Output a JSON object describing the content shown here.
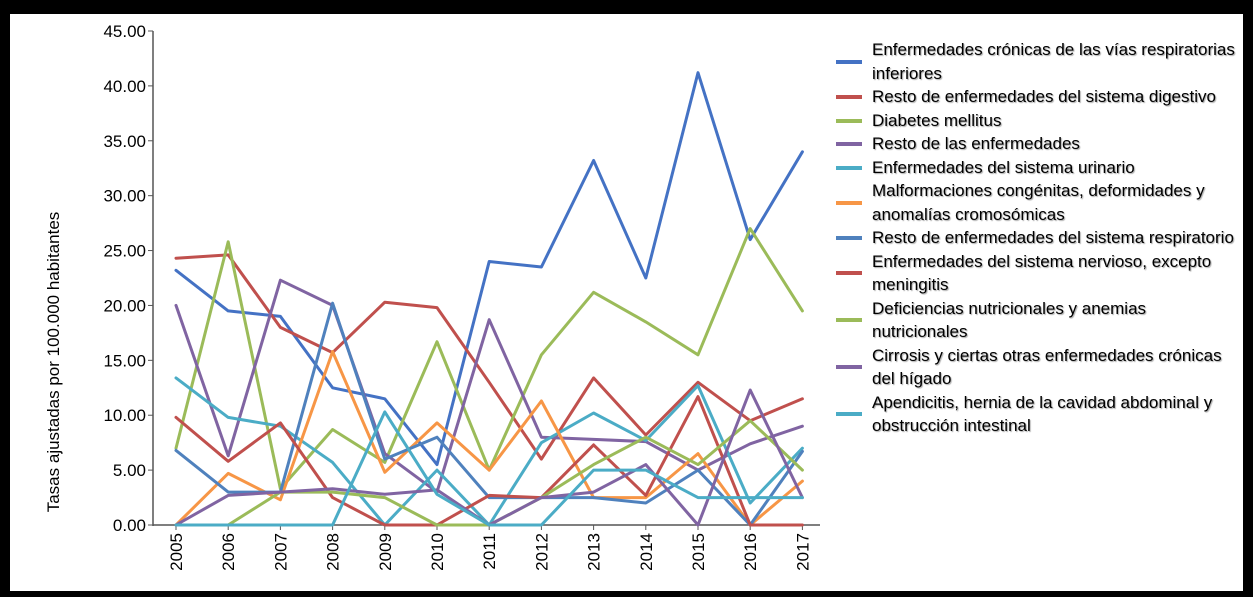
{
  "chart_data": {
    "type": "line",
    "title": "",
    "xlabel": "",
    "ylabel": "Tasas ajustadas por 100.000 habitantes",
    "ylim": [
      0,
      45
    ],
    "yticks": [
      "0.00",
      "5.00",
      "10.00",
      "15.00",
      "20.00",
      "25.00",
      "30.00",
      "35.00",
      "40.00",
      "45.00"
    ],
    "x": [
      "2005",
      "2006",
      "2007",
      "2008",
      "2009",
      "2010",
      "2011",
      "2012",
      "2013",
      "2014",
      "2015",
      "2016",
      "2017"
    ],
    "legend_position": "right",
    "series": [
      {
        "name": "Enfermedades crónicas de las vías respiratorias inferiores",
        "color": "#4472C4",
        "values": [
          23.2,
          19.5,
          19.0,
          12.5,
          11.5,
          5.5,
          24.0,
          23.5,
          33.2,
          22.5,
          41.2,
          26.0,
          34.0
        ]
      },
      {
        "name": "Resto de enfermedades del sistema digestivo",
        "color": "#C0504D",
        "values": [
          24.3,
          24.6,
          18.0,
          15.7,
          20.3,
          19.8,
          13.0,
          6.0,
          13.4,
          8.2,
          13.0,
          9.5,
          11.5
        ]
      },
      {
        "name": "Diabetes mellitus",
        "color": "#9BBB59",
        "values": [
          7.0,
          25.8,
          3.3,
          8.7,
          5.7,
          16.7,
          5.0,
          15.5,
          21.2,
          18.5,
          15.5,
          27.0,
          19.5
        ]
      },
      {
        "name": "Resto de las enfermedades",
        "color": "#8064A2",
        "values": [
          20.0,
          6.3,
          22.3,
          20.0,
          6.5,
          3.0,
          18.7,
          8.0,
          7.8,
          7.6,
          5.0,
          7.4,
          9.0
        ]
      },
      {
        "name": "Enfermedades del sistema urinario",
        "color": "#4BACC6",
        "values": [
          13.4,
          9.8,
          9.0,
          5.7,
          0.0,
          5.0,
          0.0,
          7.5,
          10.2,
          7.7,
          12.7,
          2.0,
          7.0
        ]
      },
      {
        "name": "Malformaciones congénitas, deformidades y anomalías cromosómicas",
        "color": "#F79646",
        "values": [
          0.0,
          4.7,
          2.3,
          15.8,
          4.8,
          9.3,
          5.0,
          11.3,
          2.5,
          2.5,
          6.5,
          0.0,
          4.0
        ]
      },
      {
        "name": "Resto de enfermedades del sistema respiratorio",
        "color": "#4F81BD",
        "values": [
          6.8,
          3.0,
          3.0,
          20.2,
          6.0,
          8.0,
          2.5,
          2.5,
          2.5,
          2.0,
          5.0,
          0.0,
          6.7
        ]
      },
      {
        "name": "Enfermedades del sistema nervioso, excepto meningitis",
        "color": "#C0504D",
        "values": [
          9.8,
          5.8,
          9.3,
          2.5,
          0.0,
          0.0,
          2.7,
          2.5,
          7.3,
          2.7,
          11.7,
          0.0,
          0.0
        ]
      },
      {
        "name": "Deficiencias nutricionales y anemias nutricionales",
        "color": "#9BBB59",
        "values": [
          0.0,
          0.0,
          3.0,
          3.0,
          2.5,
          0.0,
          0.0,
          2.5,
          5.5,
          8.0,
          5.5,
          9.5,
          5.0
        ]
      },
      {
        "name": "Cirrosis y ciertas otras enfermedades crónicas del hígado",
        "color": "#8064A2",
        "values": [
          0.0,
          2.7,
          3.0,
          3.3,
          2.8,
          3.2,
          0.0,
          2.5,
          3.0,
          5.5,
          0.0,
          12.3,
          2.5
        ]
      },
      {
        "name": "Apendicitis, hernia de la cavidad abdominal y obstrucción intestinal",
        "color": "#4BACC6",
        "values": [
          0.0,
          0.0,
          0.0,
          0.0,
          10.3,
          2.8,
          0.0,
          0.0,
          5.0,
          5.0,
          2.5,
          2.5,
          2.5
        ]
      }
    ]
  }
}
